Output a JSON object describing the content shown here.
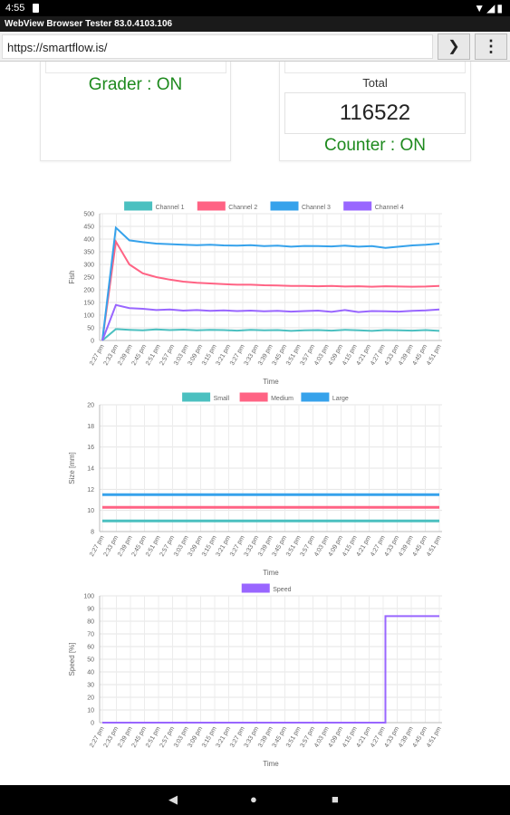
{
  "status_bar": {
    "time": "4:55"
  },
  "browser": {
    "title": "WebView Browser Tester 83.0.4103.106",
    "url": "https://smartflow.is/",
    "go_glyph": "❯",
    "menu_glyph": "⋮"
  },
  "cards": {
    "grader_status": "Grader : ON",
    "total_label": "Total",
    "total_value": "116522",
    "counter_status": "Counter : ON"
  },
  "time_ticks": [
    "2:27 pm",
    "2:33 pm",
    "2:39 pm",
    "2:45 pm",
    "2:51 pm",
    "2:57 pm",
    "3:03 pm",
    "3:09 pm",
    "3:15 pm",
    "3:21 pm",
    "3:27 pm",
    "3:33 pm",
    "3:39 pm",
    "3:45 pm",
    "3:51 pm",
    "3:57 pm",
    "4:03 pm",
    "4:09 pm",
    "4:15 pm",
    "4:21 pm",
    "4:27 pm",
    "4:33 pm",
    "4:39 pm",
    "4:45 pm",
    "4:51 pm"
  ],
  "chart_data": [
    {
      "type": "line",
      "xlabel": "Time",
      "ylabel": "Fish",
      "ylim": [
        0,
        500
      ],
      "yticks": [
        0,
        50,
        100,
        150,
        200,
        250,
        300,
        350,
        400,
        450,
        500
      ],
      "grid": true,
      "legend_position": "top",
      "series": [
        {
          "name": "Channel 1",
          "color": "#4bc0c0",
          "values": [
            0,
            45,
            42,
            40,
            44,
            41,
            43,
            40,
            42,
            41,
            39,
            42,
            40,
            41,
            38,
            40,
            41,
            39,
            42,
            40,
            38,
            41,
            40,
            39,
            41,
            38
          ]
        },
        {
          "name": "Channel 2",
          "color": "#ff6384",
          "values": [
            0,
            390,
            300,
            265,
            250,
            240,
            232,
            228,
            225,
            222,
            220,
            220,
            218,
            217,
            215,
            215,
            214,
            215,
            213,
            214,
            212,
            214,
            213,
            212,
            213,
            215
          ]
        },
        {
          "name": "Channel 3",
          "color": "#36a2eb",
          "values": [
            0,
            445,
            395,
            388,
            382,
            380,
            378,
            376,
            378,
            375,
            374,
            376,
            372,
            374,
            370,
            373,
            372,
            371,
            374,
            370,
            372,
            365,
            370,
            375,
            378,
            382
          ]
        },
        {
          "name": "Channel 4",
          "color": "#9966ff",
          "values": [
            0,
            140,
            128,
            125,
            120,
            122,
            118,
            120,
            117,
            119,
            116,
            118,
            115,
            117,
            114,
            116,
            118,
            113,
            120,
            112,
            116,
            115,
            114,
            117,
            119,
            122
          ]
        }
      ]
    },
    {
      "type": "line",
      "xlabel": "Time",
      "ylabel": "Size [mm]",
      "ylim": [
        8,
        20
      ],
      "yticks": [
        8,
        10,
        12,
        14,
        16,
        18,
        20
      ],
      "grid": true,
      "legend_position": "top",
      "series": [
        {
          "name": "Small",
          "color": "#4bc0c0",
          "values": [
            9,
            9,
            9,
            9,
            9,
            9,
            9,
            9,
            9,
            9,
            9,
            9,
            9,
            9,
            9,
            9,
            9,
            9,
            9,
            9,
            9,
            9,
            9,
            9,
            9,
            9
          ]
        },
        {
          "name": "Medium",
          "color": "#ff6384",
          "values": [
            10.3,
            10.3,
            10.3,
            10.3,
            10.3,
            10.3,
            10.3,
            10.3,
            10.3,
            10.3,
            10.3,
            10.3,
            10.3,
            10.3,
            10.3,
            10.3,
            10.3,
            10.3,
            10.3,
            10.3,
            10.3,
            10.3,
            10.3,
            10.3,
            10.3,
            10.3
          ]
        },
        {
          "name": "Large",
          "color": "#36a2eb",
          "values": [
            11.5,
            11.5,
            11.5,
            11.5,
            11.5,
            11.5,
            11.5,
            11.5,
            11.5,
            11.5,
            11.5,
            11.5,
            11.5,
            11.5,
            11.5,
            11.5,
            11.5,
            11.5,
            11.5,
            11.5,
            11.5,
            11.5,
            11.5,
            11.5,
            11.5,
            11.5
          ]
        }
      ]
    },
    {
      "type": "line",
      "xlabel": "Time",
      "ylabel": "Speed [%]",
      "ylim": [
        0,
        100
      ],
      "yticks": [
        0,
        10,
        20,
        30,
        40,
        50,
        60,
        70,
        80,
        90,
        100
      ],
      "grid": true,
      "legend_position": "top",
      "series": [
        {
          "name": "Speed",
          "color": "#9966ff",
          "values": [
            0,
            0,
            0,
            0,
            0,
            0,
            0,
            0,
            0,
            0,
            0,
            0,
            0,
            0,
            0,
            0,
            0,
            0,
            0,
            0,
            0,
            84,
            84,
            84,
            84,
            84
          ]
        }
      ]
    }
  ]
}
